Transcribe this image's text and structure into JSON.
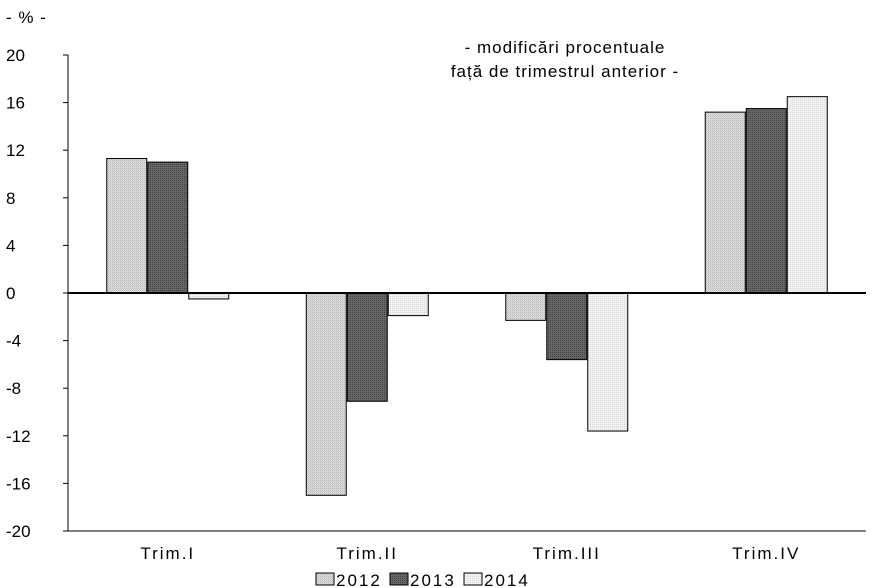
{
  "chart_data": {
    "type": "bar",
    "title_lines": [
      "- modificări procentuale",
      "față de trimestrul anterior -"
    ],
    "unit_label": "- % -",
    "xlabel": "",
    "ylabel": "",
    "categories": [
      "Trim.I",
      "Trim.II",
      "Trim.III",
      "Trim.IV"
    ],
    "series": [
      {
        "name": "2012",
        "values": [
          11.3,
          -17.0,
          -2.3,
          15.2
        ],
        "color": "#d4d4d4"
      },
      {
        "name": "2013",
        "values": [
          11.0,
          -9.1,
          -5.6,
          15.5
        ],
        "color": "#5a5a5a"
      },
      {
        "name": "2014",
        "values": [
          -0.5,
          -1.9,
          -11.6,
          16.5
        ],
        "color": "#ebebeb"
      }
    ],
    "ylim": [
      -20,
      20
    ],
    "yticks": [
      "20",
      "16",
      "12",
      "8",
      "4",
      "0",
      "-4",
      "-8",
      "-12",
      "-16",
      "-20"
    ],
    "grid": false,
    "legend_position": "bottom-center"
  }
}
